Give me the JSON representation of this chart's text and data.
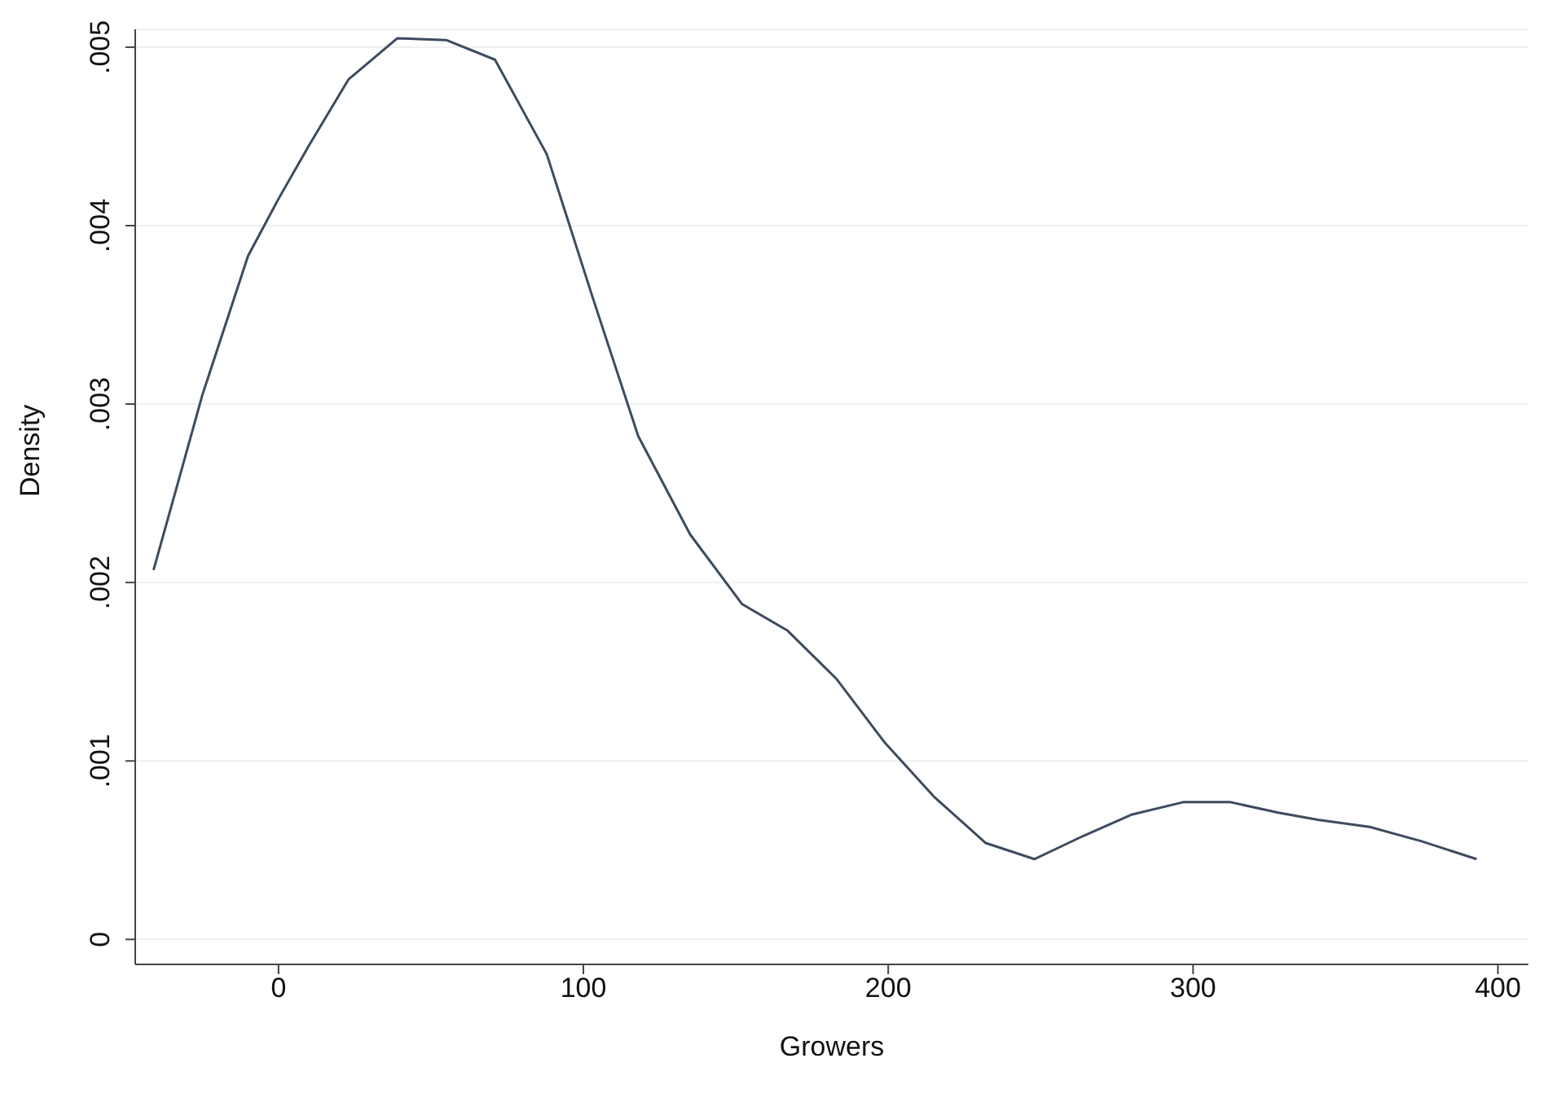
{
  "chart_data": {
    "type": "line",
    "xlabel": "Growers",
    "ylabel": "Density",
    "x": [
      -41,
      -32,
      -25,
      -10,
      0,
      10,
      23,
      39,
      55,
      71,
      88,
      103,
      118,
      135,
      152,
      167,
      183,
      199,
      215,
      232,
      248,
      264,
      280,
      297,
      312,
      328,
      341,
      358,
      375,
      393
    ],
    "series": [
      {
        "color": "#3e4b5e",
        "values": [
          0.00207,
          0.00262,
          0.00305,
          0.00383,
          0.00415,
          0.00445,
          0.00482,
          0.00505,
          0.00504,
          0.00493,
          0.0044,
          0.0036,
          0.00282,
          0.00227,
          0.00188,
          0.00173,
          0.00146,
          0.0011,
          0.0008,
          0.00054,
          0.00045,
          0.00058,
          0.0007,
          0.00077,
          0.00077,
          0.00071,
          0.00067,
          0.00063,
          0.00055,
          0.00045
        ]
      }
    ],
    "xlim": [
      -47,
      410
    ],
    "xticks": [
      0,
      100,
      200,
      300,
      400
    ],
    "ylim": [
      -0.00014,
      0.0051
    ],
    "yticks": [
      {
        "value": 0,
        "label": "0"
      },
      {
        "value": 0.001,
        "label": ".001"
      },
      {
        "value": 0.002,
        "label": ".002"
      },
      {
        "value": 0.003,
        "label": ".003"
      },
      {
        "value": 0.004,
        "label": ".004"
      },
      {
        "value": 0.005,
        "label": ".005"
      }
    ],
    "grid": "y",
    "marker": "none",
    "line_style": "solid"
  }
}
